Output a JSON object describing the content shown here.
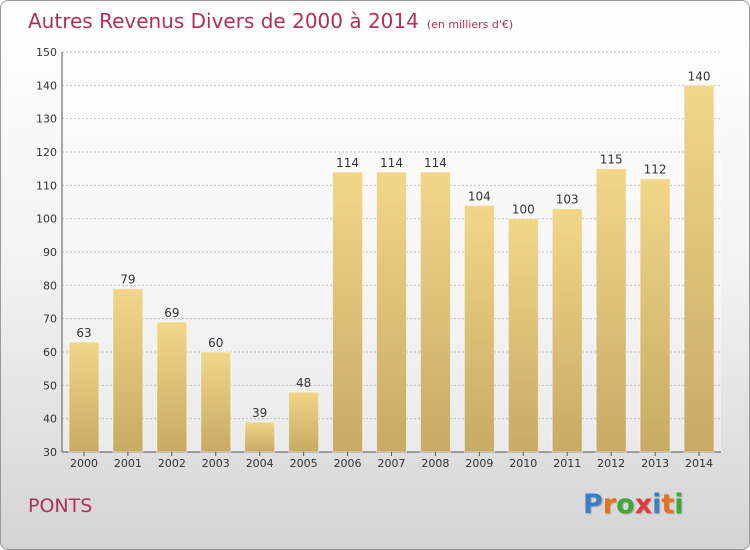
{
  "chart_data": {
    "type": "bar",
    "title": "Autres Revenus Divers de 2000 à 2014",
    "subtitle": "(en milliers d'€)",
    "categories": [
      "2000",
      "2001",
      "2002",
      "2003",
      "2004",
      "2005",
      "2006",
      "2007",
      "2008",
      "2009",
      "2010",
      "2011",
      "2012",
      "2013",
      "2014"
    ],
    "values": [
      63,
      79,
      69,
      60,
      39,
      48,
      114,
      114,
      114,
      104,
      100,
      103,
      115,
      112,
      140
    ],
    "ylim": [
      30,
      150
    ],
    "yticks": [
      30,
      40,
      50,
      60,
      70,
      80,
      90,
      100,
      110,
      120,
      130,
      140,
      150
    ],
    "grid": true,
    "bar_color": "#f2d68a",
    "bar_color_dark": "#c8aa63"
  },
  "footer": {
    "city": "PONTS",
    "logo_letters": [
      "P",
      "r",
      "o",
      "x",
      "i",
      "t",
      "i"
    ],
    "logo_colors": [
      "#3a7fc4",
      "#e8701f",
      "#3fa535",
      "#e03a3a",
      "#3a7fc4",
      "#e8701f",
      "#3fa535"
    ]
  },
  "colors": {
    "title": "#b0305a",
    "axis": "#333333",
    "grid": "#bfbfbf"
  }
}
